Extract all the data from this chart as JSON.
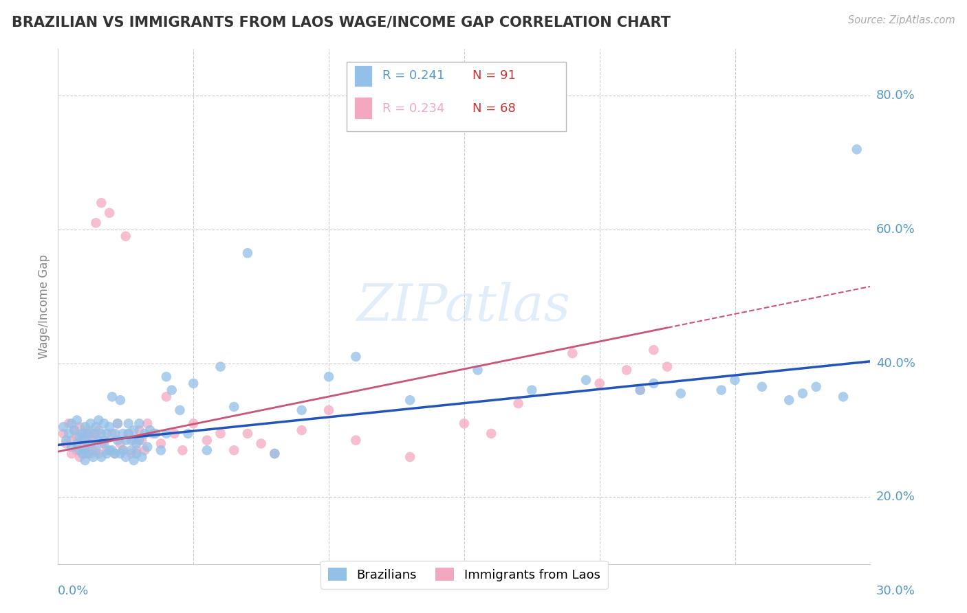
{
  "title": "BRAZILIAN VS IMMIGRANTS FROM LAOS WAGE/INCOME GAP CORRELATION CHART",
  "source": "Source: ZipAtlas.com",
  "ylabel": "Wage/Income Gap",
  "xlim": [
    0.0,
    0.3
  ],
  "ylim": [
    0.1,
    0.87
  ],
  "blue_color": "#92c0e8",
  "pink_color": "#f4a8c0",
  "trend_blue": "#2255bb",
  "trend_pink": "#cc5577",
  "axis_label_color": "#5599cc",
  "watermark": "ZIPatlas",
  "legend_r1_label": "R = 0.241",
  "legend_n1_label": "N = 91",
  "legend_r2_label": "R = 0.234",
  "legend_n2_label": "N = 68",
  "bottom_label1": "Brazilians",
  "bottom_label2": "Immigrants from Laos",
  "brazilians_x": [
    0.002,
    0.003,
    0.004,
    0.005,
    0.005,
    0.006,
    0.007,
    0.007,
    0.008,
    0.008,
    0.009,
    0.009,
    0.01,
    0.01,
    0.01,
    0.01,
    0.011,
    0.011,
    0.012,
    0.012,
    0.013,
    0.013,
    0.014,
    0.014,
    0.015,
    0.015,
    0.016,
    0.016,
    0.017,
    0.017,
    0.018,
    0.018,
    0.019,
    0.019,
    0.02,
    0.02,
    0.021,
    0.021,
    0.022,
    0.022,
    0.023,
    0.023,
    0.024,
    0.024,
    0.025,
    0.025,
    0.026,
    0.026,
    0.027,
    0.027,
    0.028,
    0.028,
    0.029,
    0.029,
    0.03,
    0.03,
    0.031,
    0.032,
    0.033,
    0.034,
    0.036,
    0.038,
    0.04,
    0.04,
    0.042,
    0.045,
    0.048,
    0.05,
    0.055,
    0.06,
    0.065,
    0.07,
    0.08,
    0.09,
    0.1,
    0.11,
    0.13,
    0.155,
    0.175,
    0.195,
    0.215,
    0.22,
    0.23,
    0.245,
    0.25,
    0.26,
    0.27,
    0.275,
    0.28,
    0.29,
    0.295
  ],
  "brazilians_y": [
    0.305,
    0.285,
    0.295,
    0.31,
    0.275,
    0.3,
    0.28,
    0.315,
    0.29,
    0.27,
    0.265,
    0.295,
    0.255,
    0.27,
    0.305,
    0.285,
    0.295,
    0.265,
    0.28,
    0.31,
    0.26,
    0.295,
    0.27,
    0.305,
    0.285,
    0.315,
    0.26,
    0.295,
    0.28,
    0.31,
    0.265,
    0.295,
    0.27,
    0.305,
    0.35,
    0.27,
    0.295,
    0.265,
    0.285,
    0.31,
    0.345,
    0.265,
    0.295,
    0.27,
    0.285,
    0.26,
    0.31,
    0.295,
    0.27,
    0.285,
    0.255,
    0.3,
    0.28,
    0.265,
    0.31,
    0.285,
    0.26,
    0.295,
    0.275,
    0.3,
    0.295,
    0.27,
    0.38,
    0.295,
    0.36,
    0.33,
    0.295,
    0.37,
    0.27,
    0.395,
    0.335,
    0.565,
    0.265,
    0.33,
    0.38,
    0.41,
    0.345,
    0.39,
    0.36,
    0.375,
    0.36,
    0.37,
    0.355,
    0.36,
    0.375,
    0.365,
    0.345,
    0.355,
    0.365,
    0.35,
    0.72
  ],
  "laos_x": [
    0.002,
    0.003,
    0.004,
    0.005,
    0.005,
    0.006,
    0.007,
    0.007,
    0.008,
    0.008,
    0.009,
    0.009,
    0.01,
    0.01,
    0.011,
    0.011,
    0.012,
    0.012,
    0.013,
    0.013,
    0.014,
    0.014,
    0.015,
    0.015,
    0.016,
    0.016,
    0.017,
    0.018,
    0.019,
    0.02,
    0.021,
    0.022,
    0.023,
    0.024,
    0.025,
    0.026,
    0.027,
    0.028,
    0.029,
    0.03,
    0.031,
    0.032,
    0.033,
    0.035,
    0.038,
    0.04,
    0.043,
    0.046,
    0.05,
    0.055,
    0.06,
    0.065,
    0.07,
    0.075,
    0.08,
    0.09,
    0.1,
    0.11,
    0.13,
    0.15,
    0.16,
    0.17,
    0.19,
    0.2,
    0.21,
    0.215,
    0.22,
    0.225
  ],
  "laos_y": [
    0.295,
    0.28,
    0.31,
    0.285,
    0.265,
    0.3,
    0.27,
    0.29,
    0.26,
    0.305,
    0.285,
    0.27,
    0.295,
    0.265,
    0.3,
    0.28,
    0.265,
    0.295,
    0.285,
    0.27,
    0.61,
    0.295,
    0.265,
    0.3,
    0.64,
    0.28,
    0.285,
    0.27,
    0.625,
    0.295,
    0.265,
    0.31,
    0.28,
    0.27,
    0.59,
    0.295,
    0.265,
    0.285,
    0.27,
    0.3,
    0.285,
    0.27,
    0.31,
    0.295,
    0.28,
    0.35,
    0.295,
    0.27,
    0.31,
    0.285,
    0.295,
    0.27,
    0.295,
    0.28,
    0.265,
    0.3,
    0.33,
    0.285,
    0.26,
    0.31,
    0.295,
    0.34,
    0.415,
    0.37,
    0.39,
    0.36,
    0.42,
    0.395
  ],
  "trend_blue_x0": 0.0,
  "trend_blue_y0": 0.278,
  "trend_blue_x1": 0.3,
  "trend_blue_y1": 0.403,
  "trend_pink_x0": 0.0,
  "trend_pink_y0": 0.268,
  "trend_pink_x1": 0.3,
  "trend_pink_y1": 0.515
}
